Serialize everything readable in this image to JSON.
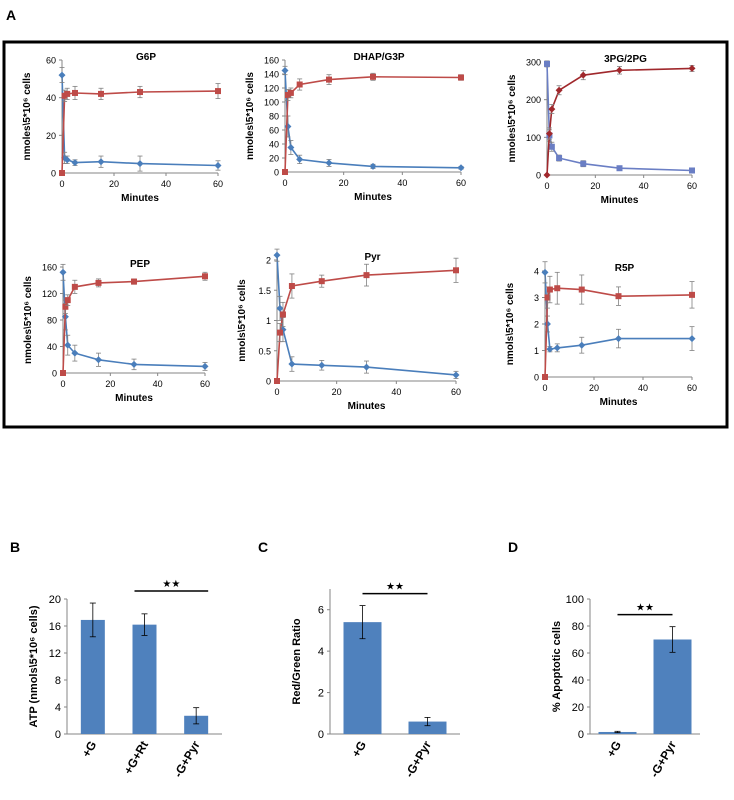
{
  "figure": {
    "panel_labels": [
      "A",
      "B",
      "C",
      "D"
    ],
    "colors": {
      "blue": "#4a7ebb",
      "red": "#be4b48",
      "dark_red": "#a0282c",
      "bar": "#4f81bd",
      "axis": "#868686"
    }
  },
  "chart_data": [
    {
      "id": "g6p",
      "panel": "A",
      "type": "line",
      "title": "G6P",
      "ylabel": "nmoles\\5*10⁶ cells",
      "xlabel": "Minutes",
      "xlim": [
        0,
        60
      ],
      "ylim": [
        0,
        60
      ],
      "xticks": [
        0,
        20,
        40,
        60
      ],
      "yticks": [
        0,
        20,
        40,
        60
      ],
      "series": [
        {
          "color": "#4a7ebb",
          "marker": "diamond",
          "x": [
            0,
            1,
            2,
            5,
            15,
            30,
            60
          ],
          "y": [
            52,
            8,
            7,
            5.5,
            6,
            5,
            4
          ],
          "err": [
            4,
            3,
            2,
            1.5,
            3,
            4,
            2.5
          ]
        },
        {
          "color": "#be4b48",
          "marker": "square",
          "x": [
            0,
            1,
            2,
            5,
            15,
            30,
            60
          ],
          "y": [
            0,
            41,
            42,
            42.5,
            42,
            43,
            43.5
          ],
          "err": [
            0,
            3,
            3,
            3.5,
            3,
            3,
            4
          ]
        }
      ]
    },
    {
      "id": "dhap",
      "panel": "A",
      "type": "line",
      "title": "DHAP/G3P",
      "ylabel": "nmoles\\5*10⁶ cells",
      "xlabel": "Minutes",
      "xlim": [
        0,
        60
      ],
      "ylim": [
        0,
        160
      ],
      "xticks": [
        0,
        20,
        40,
        60
      ],
      "yticks": [
        0,
        20,
        40,
        60,
        80,
        100,
        120,
        140,
        160
      ],
      "series": [
        {
          "color": "#4a7ebb",
          "marker": "diamond",
          "x": [
            0,
            1,
            2,
            5,
            15,
            30,
            60
          ],
          "y": [
            145,
            65,
            35,
            18,
            13,
            8,
            6
          ],
          "err": [
            6,
            15,
            10,
            6,
            5,
            3,
            2
          ]
        },
        {
          "color": "#be4b48",
          "marker": "square",
          "x": [
            0,
            1,
            2,
            5,
            15,
            30,
            60
          ],
          "y": [
            0,
            110,
            113,
            125,
            132,
            136,
            135
          ],
          "err": [
            0,
            8,
            7,
            8,
            7,
            5,
            4
          ]
        }
      ]
    },
    {
      "id": "3pg",
      "panel": "A",
      "type": "line",
      "title": "3PG/2PG",
      "ylabel": "nmoles\\5*10⁶ cells",
      "xlabel": "Minutes",
      "xlim": [
        0,
        60
      ],
      "ylim": [
        0,
        300
      ],
      "xticks": [
        0,
        20,
        40,
        60
      ],
      "yticks": [
        0,
        100,
        200,
        300
      ],
      "series": [
        {
          "color": "#6a7ec4",
          "marker": "square",
          "x": [
            0,
            1,
            2,
            5,
            15,
            30,
            60
          ],
          "y": [
            295,
            105,
            75,
            45,
            30,
            18,
            12
          ],
          "err": [
            8,
            15,
            12,
            8,
            8,
            6,
            4
          ]
        },
        {
          "color": "#a0282c",
          "marker": "diamond",
          "x": [
            0,
            1,
            2,
            5,
            15,
            30,
            60
          ],
          "y": [
            0,
            110,
            175,
            225,
            265,
            278,
            283
          ],
          "err": [
            0,
            15,
            12,
            12,
            12,
            10,
            8
          ]
        }
      ]
    },
    {
      "id": "pep",
      "panel": "A",
      "type": "line",
      "title": "PEP",
      "ylabel": "nmoles\\5*10⁶ cells",
      "xlabel": "Minutes",
      "xlim": [
        0,
        60
      ],
      "ylim": [
        0,
        160
      ],
      "xticks": [
        0,
        20,
        40,
        60
      ],
      "yticks": [
        0,
        40,
        80,
        120,
        160
      ],
      "series": [
        {
          "color": "#4a7ebb",
          "marker": "diamond",
          "x": [
            0,
            1,
            2,
            5,
            15,
            30,
            60
          ],
          "y": [
            152,
            85,
            42,
            30,
            20,
            13,
            10
          ],
          "err": [
            12,
            20,
            15,
            12,
            10,
            8,
            6
          ]
        },
        {
          "color": "#be4b48",
          "marker": "square",
          "x": [
            0,
            1,
            2,
            5,
            15,
            30,
            60
          ],
          "y": [
            0,
            100,
            110,
            130,
            136,
            138,
            146
          ],
          "err": [
            0,
            10,
            8,
            10,
            6,
            4,
            6
          ]
        }
      ]
    },
    {
      "id": "pyr",
      "panel": "A",
      "type": "line",
      "title": "Pyr",
      "ylabel": "nmols\\5*10⁶ cells",
      "xlabel": "Minutes",
      "xlim": [
        0,
        60
      ],
      "ylim": [
        0,
        2
      ],
      "xticks": [
        0,
        20,
        40,
        60
      ],
      "yticks": [
        0,
        0.5,
        1,
        1.5,
        2
      ],
      "ytick_labels": [
        "0",
        "0.5",
        "1",
        "1.5",
        "2"
      ],
      "series": [
        {
          "color": "#4a7ebb",
          "marker": "diamond",
          "x": [
            0,
            1,
            2,
            5,
            15,
            30,
            60
          ],
          "y": [
            2.08,
            1.2,
            0.85,
            0.28,
            0.26,
            0.23,
            0.1
          ],
          "err": [
            0.1,
            0.2,
            0.2,
            0.12,
            0.08,
            0.1,
            0.06
          ]
        },
        {
          "color": "#be4b48",
          "marker": "square",
          "x": [
            0,
            1,
            2,
            5,
            15,
            30,
            60
          ],
          "y": [
            0,
            0.8,
            1.1,
            1.57,
            1.65,
            1.75,
            1.83
          ],
          "err": [
            0,
            0.15,
            0.2,
            0.2,
            0.1,
            0.18,
            0.2
          ]
        }
      ]
    },
    {
      "id": "r5p",
      "panel": "A",
      "type": "line",
      "title": "R5P",
      "ylabel": "nmols\\5*10⁶ cells",
      "xlabel": "Minutes",
      "xlim": [
        0,
        60
      ],
      "ylim": [
        0,
        4
      ],
      "xticks": [
        0,
        20,
        40,
        60
      ],
      "yticks": [
        0,
        1,
        2,
        3,
        4
      ],
      "series": [
        {
          "color": "#4a7ebb",
          "marker": "diamond",
          "x": [
            0,
            1,
            2,
            5,
            15,
            30,
            60
          ],
          "y": [
            3.95,
            2.0,
            1.05,
            1.1,
            1.2,
            1.45,
            1.45
          ],
          "err": [
            0.4,
            0.3,
            0.1,
            0.15,
            0.3,
            0.35,
            0.45
          ]
        },
        {
          "color": "#be4b48",
          "marker": "square",
          "x": [
            0,
            1,
            2,
            5,
            15,
            30,
            60
          ],
          "y": [
            0,
            3.0,
            3.3,
            3.35,
            3.3,
            3.05,
            3.1
          ],
          "err": [
            0,
            0.4,
            0.5,
            0.6,
            0.55,
            0.35,
            0.5
          ]
        }
      ]
    },
    {
      "id": "atp",
      "panel": "B",
      "type": "bar",
      "ylabel": "ATP (nmols\\5*10⁶ cells)",
      "categories": [
        "+G",
        "+G+Rt",
        "-G+Pyr"
      ],
      "values": [
        16.9,
        16.2,
        2.7
      ],
      "err": [
        2.5,
        1.6,
        1.2
      ],
      "ylim": [
        0,
        20
      ],
      "yticks": [
        0,
        4,
        8,
        12,
        16,
        20
      ],
      "significance": {
        "from": 1,
        "to": 2,
        "label": "★★"
      }
    },
    {
      "id": "redgreen",
      "panel": "C",
      "type": "bar",
      "ylabel": "Red/Green Ratio",
      "categories": [
        "+G",
        "-G+Pyr"
      ],
      "values": [
        5.4,
        0.6
      ],
      "err": [
        0.8,
        0.2
      ],
      "ylim": [
        0,
        7
      ],
      "yticks": [
        0,
        2,
        4,
        6
      ],
      "significance": {
        "from": 0,
        "to": 1,
        "label": "★★"
      }
    },
    {
      "id": "apoptotic",
      "panel": "D",
      "type": "bar",
      "ylabel": "% Apoptotic cells",
      "categories": [
        "+G",
        "-G+Pyr"
      ],
      "values": [
        1.5,
        70
      ],
      "err": [
        0.5,
        9.5
      ],
      "ylim": [
        0,
        100
      ],
      "yticks": [
        0,
        20,
        40,
        60,
        80,
        100
      ],
      "significance": {
        "from": 0,
        "to": 1,
        "label": "★★"
      }
    }
  ]
}
